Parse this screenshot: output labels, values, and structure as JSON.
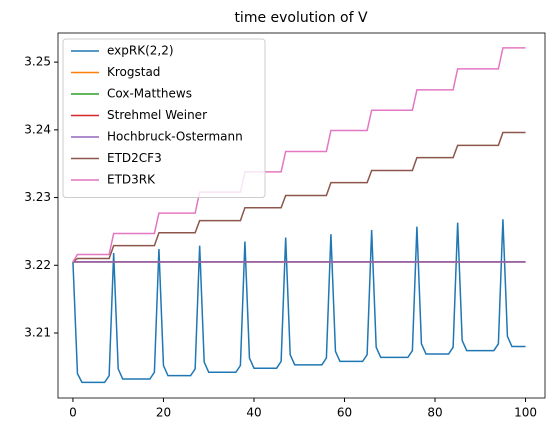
{
  "chart_data": {
    "type": "line",
    "title": "time evolution of V",
    "x": [
      0,
      1,
      2,
      3,
      4,
      5,
      6,
      7,
      8,
      9,
      10,
      11,
      12,
      13,
      14,
      15,
      16,
      17,
      18,
      19,
      20,
      21,
      22,
      23,
      24,
      25,
      26,
      27,
      28,
      29,
      30,
      31,
      32,
      33,
      34,
      35,
      36,
      37,
      38,
      39,
      40,
      41,
      42,
      43,
      44,
      45,
      46,
      47,
      48,
      49,
      50,
      51,
      52,
      53,
      54,
      55,
      56,
      57,
      58,
      59,
      60,
      61,
      62,
      63,
      64,
      65,
      66,
      67,
      68,
      69,
      70,
      71,
      72,
      73,
      74,
      75,
      76,
      77,
      78,
      79,
      80,
      81,
      82,
      83,
      84,
      85,
      86,
      87,
      88,
      89,
      90,
      91,
      92,
      93,
      94,
      95,
      96,
      97,
      98,
      99,
      100
    ],
    "series": [
      {
        "name": "expRK(2,2)",
        "color": "#1f77b4",
        "values": [
          3.2205,
          3.204,
          3.2027,
          3.2027,
          3.2027,
          3.2027,
          3.2027,
          3.2027,
          3.2037,
          3.2218,
          3.2047,
          3.2032,
          3.2032,
          3.2032,
          3.2032,
          3.2032,
          3.2032,
          3.2032,
          3.2042,
          3.2224,
          3.2052,
          3.2037,
          3.2037,
          3.2037,
          3.2037,
          3.2037,
          3.2037,
          3.2047,
          3.2229,
          3.2057,
          3.2042,
          3.2042,
          3.2042,
          3.2042,
          3.2042,
          3.2042,
          3.2042,
          3.2052,
          3.2235,
          3.2063,
          3.2048,
          3.2048,
          3.2048,
          3.2048,
          3.2048,
          3.2048,
          3.2058,
          3.2241,
          3.2068,
          3.2053,
          3.2053,
          3.2053,
          3.2053,
          3.2053,
          3.2053,
          3.2053,
          3.2063,
          3.2246,
          3.2073,
          3.2058,
          3.2058,
          3.2058,
          3.2058,
          3.2058,
          3.2058,
          3.2068,
          3.2252,
          3.2079,
          3.2064,
          3.2064,
          3.2064,
          3.2064,
          3.2064,
          3.2064,
          3.2064,
          3.2074,
          3.2257,
          3.2084,
          3.2069,
          3.2069,
          3.2069,
          3.2069,
          3.2069,
          3.2069,
          3.2079,
          3.2263,
          3.2089,
          3.2074,
          3.2074,
          3.2074,
          3.2074,
          3.2074,
          3.2074,
          3.2074,
          3.2084,
          3.2268,
          3.2095,
          3.208,
          3.208,
          3.208,
          3.208
        ]
      },
      {
        "name": "Krogstad",
        "color": "#ff7f0e",
        "values": [
          3.2205,
          3.2205,
          3.2205,
          3.2205,
          3.2205,
          3.2205,
          3.2205,
          3.2205,
          3.2205,
          3.2205,
          3.2205,
          3.2205,
          3.2205,
          3.2205,
          3.2205,
          3.2205,
          3.2205,
          3.2205,
          3.2205,
          3.2205,
          3.2205,
          3.2205,
          3.2205,
          3.2205,
          3.2205,
          3.2205,
          3.2205,
          3.2205,
          3.2205,
          3.2205,
          3.2205,
          3.2205,
          3.2205,
          3.2205,
          3.2205,
          3.2205,
          3.2205,
          3.2205,
          3.2205,
          3.2205,
          3.2205,
          3.2205,
          3.2205,
          3.2205,
          3.2205,
          3.2205,
          3.2205,
          3.2205,
          3.2205,
          3.2205,
          3.2205,
          3.2205,
          3.2205,
          3.2205,
          3.2205,
          3.2205,
          3.2205,
          3.2205,
          3.2205,
          3.2205,
          3.2205,
          3.2205,
          3.2205,
          3.2205,
          3.2205,
          3.2205,
          3.2205,
          3.2205,
          3.2205,
          3.2205,
          3.2205,
          3.2205,
          3.2205,
          3.2205,
          3.2205,
          3.2205,
          3.2205,
          3.2205,
          3.2205,
          3.2205,
          3.2205,
          3.2205,
          3.2205,
          3.2205,
          3.2205,
          3.2205,
          3.2205,
          3.2205,
          3.2205,
          3.2205,
          3.2205,
          3.2205,
          3.2205,
          3.2205,
          3.2205,
          3.2205,
          3.2205,
          3.2205,
          3.2205,
          3.2205,
          3.2205
        ]
      },
      {
        "name": "Cox-Matthews",
        "color": "#2ca02c",
        "values": [
          3.2205,
          3.2205,
          3.2205,
          3.2205,
          3.2205,
          3.2205,
          3.2205,
          3.2205,
          3.2205,
          3.2205,
          3.2205,
          3.2205,
          3.2205,
          3.2205,
          3.2205,
          3.2205,
          3.2205,
          3.2205,
          3.2205,
          3.2205,
          3.2205,
          3.2205,
          3.2205,
          3.2205,
          3.2205,
          3.2205,
          3.2205,
          3.2205,
          3.2205,
          3.2205,
          3.2205,
          3.2205,
          3.2205,
          3.2205,
          3.2205,
          3.2205,
          3.2205,
          3.2205,
          3.2205,
          3.2205,
          3.2205,
          3.2205,
          3.2205,
          3.2205,
          3.2205,
          3.2205,
          3.2205,
          3.2205,
          3.2205,
          3.2205,
          3.2205,
          3.2205,
          3.2205,
          3.2205,
          3.2205,
          3.2205,
          3.2205,
          3.2205,
          3.2205,
          3.2205,
          3.2205,
          3.2205,
          3.2205,
          3.2205,
          3.2205,
          3.2205,
          3.2205,
          3.2205,
          3.2205,
          3.2205,
          3.2205,
          3.2205,
          3.2205,
          3.2205,
          3.2205,
          3.2205,
          3.2205,
          3.2205,
          3.2205,
          3.2205,
          3.2205,
          3.2205,
          3.2205,
          3.2205,
          3.2205,
          3.2205,
          3.2205,
          3.2205,
          3.2205,
          3.2205,
          3.2205,
          3.2205,
          3.2205,
          3.2205,
          3.2205,
          3.2205,
          3.2205,
          3.2205,
          3.2205,
          3.2205,
          3.2205
        ]
      },
      {
        "name": "Strehmel Weiner",
        "color": "#d62728",
        "values": [
          3.2205,
          3.2205,
          3.2205,
          3.2205,
          3.2205,
          3.2205,
          3.2205,
          3.2205,
          3.2205,
          3.2205,
          3.2205,
          3.2205,
          3.2205,
          3.2205,
          3.2205,
          3.2205,
          3.2205,
          3.2205,
          3.2205,
          3.2205,
          3.2205,
          3.2205,
          3.2205,
          3.2205,
          3.2205,
          3.2205,
          3.2205,
          3.2205,
          3.2205,
          3.2205,
          3.2205,
          3.2205,
          3.2205,
          3.2205,
          3.2205,
          3.2205,
          3.2205,
          3.2205,
          3.2205,
          3.2205,
          3.2205,
          3.2205,
          3.2205,
          3.2205,
          3.2205,
          3.2205,
          3.2205,
          3.2205,
          3.2205,
          3.2205,
          3.2205,
          3.2205,
          3.2205,
          3.2205,
          3.2205,
          3.2205,
          3.2205,
          3.2205,
          3.2205,
          3.2205,
          3.2205,
          3.2205,
          3.2205,
          3.2205,
          3.2205,
          3.2205,
          3.2205,
          3.2205,
          3.2205,
          3.2205,
          3.2205,
          3.2205,
          3.2205,
          3.2205,
          3.2205,
          3.2205,
          3.2205,
          3.2205,
          3.2205,
          3.2205,
          3.2205,
          3.2205,
          3.2205,
          3.2205,
          3.2205,
          3.2205,
          3.2205,
          3.2205,
          3.2205,
          3.2205,
          3.2205,
          3.2205,
          3.2205,
          3.2205,
          3.2205,
          3.2205,
          3.2205,
          3.2205,
          3.2205,
          3.2205,
          3.2205
        ]
      },
      {
        "name": "Hochbruck-Ostermann",
        "color": "#9467bd",
        "values": [
          3.2205,
          3.2205,
          3.2205,
          3.2205,
          3.2205,
          3.2205,
          3.2205,
          3.2205,
          3.2205,
          3.2205,
          3.2205,
          3.2205,
          3.2205,
          3.2205,
          3.2205,
          3.2205,
          3.2205,
          3.2205,
          3.2205,
          3.2205,
          3.2205,
          3.2205,
          3.2205,
          3.2205,
          3.2205,
          3.2205,
          3.2205,
          3.2205,
          3.2205,
          3.2205,
          3.2205,
          3.2205,
          3.2205,
          3.2205,
          3.2205,
          3.2205,
          3.2205,
          3.2205,
          3.2205,
          3.2205,
          3.2205,
          3.2205,
          3.2205,
          3.2205,
          3.2205,
          3.2205,
          3.2205,
          3.2205,
          3.2205,
          3.2205,
          3.2205,
          3.2205,
          3.2205,
          3.2205,
          3.2205,
          3.2205,
          3.2205,
          3.2205,
          3.2205,
          3.2205,
          3.2205,
          3.2205,
          3.2205,
          3.2205,
          3.2205,
          3.2205,
          3.2205,
          3.2205,
          3.2205,
          3.2205,
          3.2205,
          3.2205,
          3.2205,
          3.2205,
          3.2205,
          3.2205,
          3.2205,
          3.2205,
          3.2205,
          3.2205,
          3.2205,
          3.2205,
          3.2205,
          3.2205,
          3.2205,
          3.2205,
          3.2205,
          3.2205,
          3.2205,
          3.2205,
          3.2205,
          3.2205,
          3.2205,
          3.2205,
          3.2205,
          3.2205,
          3.2205,
          3.2205,
          3.2205,
          3.2205,
          3.2205
        ]
      },
      {
        "name": "ETD2CF3",
        "color": "#8c564b",
        "values": [
          3.2205,
          3.221,
          3.221,
          3.221,
          3.221,
          3.221,
          3.221,
          3.221,
          3.221,
          3.2229,
          3.2229,
          3.2229,
          3.2229,
          3.2229,
          3.2229,
          3.2229,
          3.2229,
          3.2229,
          3.2229,
          3.2248,
          3.2248,
          3.2248,
          3.2248,
          3.2248,
          3.2248,
          3.2248,
          3.2248,
          3.2248,
          3.2266,
          3.2266,
          3.2266,
          3.2266,
          3.2266,
          3.2266,
          3.2266,
          3.2266,
          3.2266,
          3.2266,
          3.2285,
          3.2285,
          3.2285,
          3.2285,
          3.2285,
          3.2285,
          3.2285,
          3.2285,
          3.2285,
          3.2303,
          3.2303,
          3.2303,
          3.2303,
          3.2303,
          3.2303,
          3.2303,
          3.2303,
          3.2303,
          3.2303,
          3.2322,
          3.2322,
          3.2322,
          3.2322,
          3.2322,
          3.2322,
          3.2322,
          3.2322,
          3.2322,
          3.234,
          3.234,
          3.234,
          3.234,
          3.234,
          3.234,
          3.234,
          3.234,
          3.234,
          3.234,
          3.2359,
          3.2359,
          3.2359,
          3.2359,
          3.2359,
          3.2359,
          3.2359,
          3.2359,
          3.2359,
          3.2377,
          3.2377,
          3.2377,
          3.2377,
          3.2377,
          3.2377,
          3.2377,
          3.2377,
          3.2377,
          3.2377,
          3.2396,
          3.2396,
          3.2396,
          3.2396,
          3.2396,
          3.2396
        ]
      },
      {
        "name": "ETD3RK",
        "color": "#e377c2",
        "values": [
          3.2205,
          3.2216,
          3.2216,
          3.2216,
          3.2216,
          3.2216,
          3.2216,
          3.2216,
          3.2216,
          3.2247,
          3.2247,
          3.2247,
          3.2247,
          3.2247,
          3.2247,
          3.2247,
          3.2247,
          3.2247,
          3.2247,
          3.2277,
          3.2277,
          3.2277,
          3.2277,
          3.2277,
          3.2277,
          3.2277,
          3.2277,
          3.2277,
          3.2308,
          3.2308,
          3.2308,
          3.2308,
          3.2308,
          3.2308,
          3.2308,
          3.2308,
          3.2308,
          3.2308,
          3.2338,
          3.2338,
          3.2338,
          3.2338,
          3.2338,
          3.2338,
          3.2338,
          3.2338,
          3.2338,
          3.2368,
          3.2368,
          3.2368,
          3.2368,
          3.2368,
          3.2368,
          3.2368,
          3.2368,
          3.2368,
          3.2368,
          3.2399,
          3.2399,
          3.2399,
          3.2399,
          3.2399,
          3.2399,
          3.2399,
          3.2399,
          3.2399,
          3.2429,
          3.2429,
          3.2429,
          3.2429,
          3.2429,
          3.2429,
          3.2429,
          3.2429,
          3.2429,
          3.2429,
          3.2459,
          3.2459,
          3.2459,
          3.2459,
          3.2459,
          3.2459,
          3.2459,
          3.2459,
          3.2459,
          3.249,
          3.249,
          3.249,
          3.249,
          3.249,
          3.249,
          3.249,
          3.249,
          3.249,
          3.249,
          3.2521,
          3.2521,
          3.2521,
          3.2521,
          3.2521,
          3.2521
        ]
      }
    ],
    "xlim": [
      -3.3,
      104.3
    ],
    "xticks": [
      0,
      20,
      40,
      60,
      80,
      100
    ],
    "ylim": [
      3.2004,
      3.2543
    ],
    "yticks": [
      3.21,
      3.22,
      3.23,
      3.24,
      3.25
    ],
    "legend": "upper left"
  }
}
